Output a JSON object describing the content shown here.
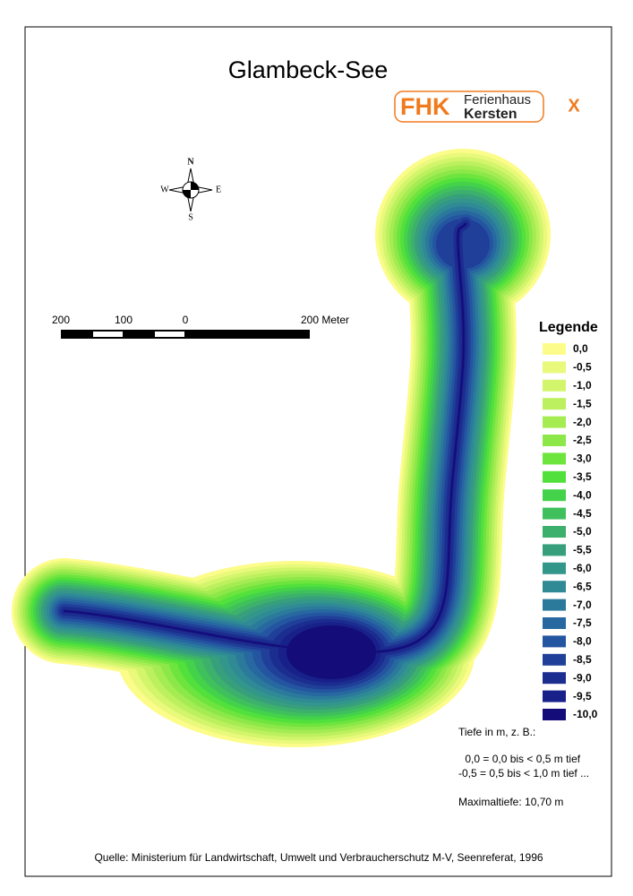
{
  "title": "Glambeck-See",
  "logo": {
    "mark": "FHK",
    "line1": "Ferienhaus",
    "line2": "Kersten",
    "close": "X"
  },
  "compass": {
    "north": "N",
    "east": "E",
    "south": "S",
    "west": "W"
  },
  "scale": {
    "labels": [
      "200",
      "100",
      "0",
      "200 Meter"
    ]
  },
  "legend": {
    "title": "Legende",
    "items": [
      {
        "label": "0,0",
        "color": "#fcfc8a"
      },
      {
        "label": "-0,5",
        "color": "#e8f97b"
      },
      {
        "label": "-1,0",
        "color": "#d2f56c"
      },
      {
        "label": "-1,5",
        "color": "#bcf05e"
      },
      {
        "label": "-2,0",
        "color": "#a4ec52"
      },
      {
        "label": "-2,5",
        "color": "#8ce848"
      },
      {
        "label": "-3,0",
        "color": "#6ee43e"
      },
      {
        "label": "-3,5",
        "color": "#52e03c"
      },
      {
        "label": "-4,0",
        "color": "#44d24a"
      },
      {
        "label": "-4,5",
        "color": "#3fc05c"
      },
      {
        "label": "-5,0",
        "color": "#3cb06c"
      },
      {
        "label": "-5,5",
        "color": "#389f7c"
      },
      {
        "label": "-6,0",
        "color": "#33968a"
      },
      {
        "label": "-6,5",
        "color": "#2f8a96"
      },
      {
        "label": "-7,0",
        "color": "#2b7a9c"
      },
      {
        "label": "-7,5",
        "color": "#2868a0"
      },
      {
        "label": "-8,0",
        "color": "#2455a0"
      },
      {
        "label": "-8,5",
        "color": "#203f98"
      },
      {
        "label": "-9,0",
        "color": "#1c2d90"
      },
      {
        "label": "-9,5",
        "color": "#18208a"
      },
      {
        "label": "-10,0",
        "color": "#140c78"
      }
    ]
  },
  "notes": [
    "Tiefe in m, z. B.:",
    " 0,0 = 0,0 bis < 0,5 m tief",
    "-0,5 = 0,5 bis < 1,0 m tief ...",
    "Maximaltiefe: 10,70 m"
  ],
  "source": "Quelle: Ministerium für Landwirtschaft, Umwelt und Verbraucherschutz M-V, Seenreferat, 1996"
}
